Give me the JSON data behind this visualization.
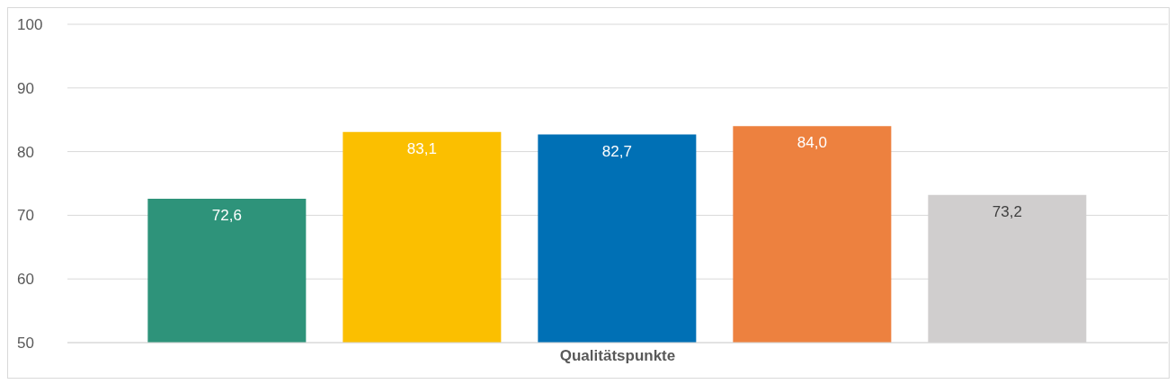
{
  "chart_data": {
    "type": "bar",
    "categories": [
      "Qualitätspunkte"
    ],
    "series": [
      {
        "color": "#2e937a",
        "values": [
          72.6
        ],
        "value_labels": [
          "72,6"
        ]
      },
      {
        "color": "#fbbf00",
        "values": [
          83.1
        ],
        "value_labels": [
          "83,1"
        ]
      },
      {
        "color": "#0070b5",
        "values": [
          82.7
        ],
        "value_labels": [
          "82,7"
        ]
      },
      {
        "color": "#ed813f",
        "values": [
          84.0
        ],
        "value_labels": [
          "84,0"
        ]
      },
      {
        "color": "#d0cece",
        "values": [
          73.2
        ],
        "value_labels": [
          "73,2"
        ]
      }
    ],
    "ylim": [
      50,
      100
    ],
    "yticks": [
      50,
      60,
      70,
      80,
      90,
      100
    ],
    "grid": "y",
    "legend": false
  }
}
